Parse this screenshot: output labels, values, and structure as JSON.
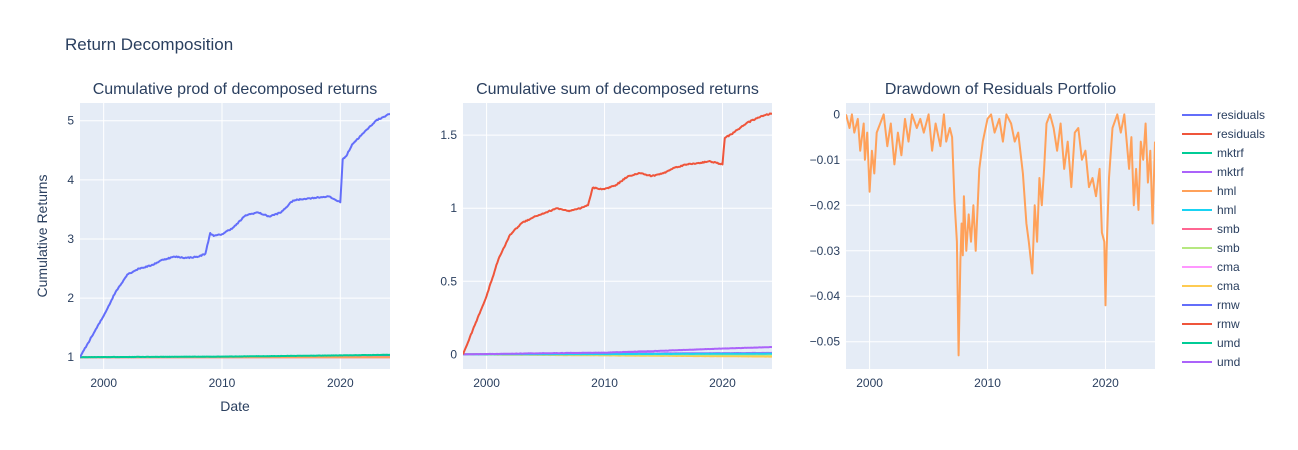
{
  "figure_title": "Return Decomposition",
  "colors": {
    "plot_bg": "#E5ECF6",
    "grid": "#FFFFFF",
    "text": "#2a3f5f"
  },
  "legend": [
    {
      "label": "residuals",
      "color": "#636EFA"
    },
    {
      "label": "residuals",
      "color": "#EF553B"
    },
    {
      "label": "mktrf",
      "color": "#00CC96"
    },
    {
      "label": "mktrf",
      "color": "#AB63FA"
    },
    {
      "label": "hml",
      "color": "#FFA15A"
    },
    {
      "label": "hml",
      "color": "#19D3F3"
    },
    {
      "label": "smb",
      "color": "#FF6692"
    },
    {
      "label": "smb",
      "color": "#B6E880"
    },
    {
      "label": "cma",
      "color": "#FF97FF"
    },
    {
      "label": "cma",
      "color": "#FECB52"
    },
    {
      "label": "rmw",
      "color": "#636EFA"
    },
    {
      "label": "rmw",
      "color": "#EF553B"
    },
    {
      "label": "umd",
      "color": "#00CC96"
    },
    {
      "label": "umd",
      "color": "#AB63FA"
    }
  ],
  "chart_data": [
    {
      "type": "line",
      "title": "Cumulative prod of decomposed returns",
      "xlabel": "Date",
      "ylabel": "Cumulative Returns",
      "xlim": [
        1998,
        2024.2
      ],
      "ylim": [
        0.8,
        5.3
      ],
      "xticks": [
        2000,
        2010,
        2020
      ],
      "xtick_labels": [
        "2000",
        "2010",
        "2020"
      ],
      "yticks": [
        1,
        2,
        3,
        4,
        5
      ],
      "ytick_labels": [
        "1",
        "2",
        "3",
        "4",
        "5"
      ],
      "grid": true,
      "series": [
        {
          "name": "residuals",
          "color": "#636EFA",
          "noise": 0.02,
          "x": [
            1998,
            1999,
            2000,
            2001,
            2002,
            2003,
            2004,
            2005,
            2006,
            2007,
            2008,
            2008.6,
            2009,
            2009.3,
            2010,
            2011,
            2012,
            2013,
            2014,
            2015,
            2016,
            2017,
            2018,
            2019,
            2020.0,
            2020.2,
            2020.5,
            2021,
            2022,
            2023,
            2024.2
          ],
          "y": [
            1.0,
            1.35,
            1.7,
            2.1,
            2.4,
            2.5,
            2.55,
            2.65,
            2.7,
            2.68,
            2.7,
            2.75,
            3.1,
            3.05,
            3.08,
            3.2,
            3.4,
            3.45,
            3.38,
            3.45,
            3.65,
            3.68,
            3.7,
            3.72,
            3.62,
            4.35,
            4.4,
            4.6,
            4.8,
            5.0,
            5.12
          ]
        },
        {
          "name": "mktrf",
          "color": "#00CC96",
          "noise": 0.004,
          "x": [
            1998,
            2010,
            2020,
            2024.2
          ],
          "y": [
            1.0,
            1.01,
            1.03,
            1.04
          ]
        },
        {
          "name": "hml",
          "color": "#FFA15A",
          "noise": 0.0,
          "x": [
            1998,
            2024.2
          ],
          "y": [
            1.0,
            1.0
          ]
        },
        {
          "name": "smb",
          "color": "#FF6692",
          "noise": 0.0,
          "x": [
            1998,
            2024.2
          ],
          "y": [
            1.0,
            1.0
          ]
        },
        {
          "name": "cma",
          "color": "#FF97FF",
          "noise": 0.0,
          "x": [
            1998,
            2024.2
          ],
          "y": [
            1.0,
            1.0
          ]
        },
        {
          "name": "rmw",
          "color": "#636EFA",
          "noise": 0.0,
          "x": [
            1998,
            2024.2
          ],
          "y": [
            1.0,
            1.01
          ]
        },
        {
          "name": "umd",
          "color": "#00CC96",
          "noise": 0.004,
          "x": [
            1998,
            2010,
            2020,
            2024.2
          ],
          "y": [
            1.0,
            1.005,
            1.02,
            1.02
          ]
        }
      ]
    },
    {
      "type": "line",
      "title": "Cumulative sum of decomposed returns",
      "xlabel": "",
      "ylabel": "",
      "xlim": [
        1998,
        2024.2
      ],
      "ylim": [
        -0.1,
        1.72
      ],
      "xticks": [
        2000,
        2010,
        2020
      ],
      "xtick_labels": [
        "2000",
        "2010",
        "2020"
      ],
      "yticks": [
        0,
        0.5,
        1,
        1.5
      ],
      "ytick_labels": [
        "0",
        "0.5",
        "1",
        "1.5"
      ],
      "grid": true,
      "series": [
        {
          "name": "residuals",
          "color": "#EF553B",
          "noise": 0.008,
          "x": [
            1998,
            1999,
            2000,
            2001,
            2002,
            2003,
            2004,
            2005,
            2006,
            2007,
            2008,
            2008.6,
            2009,
            2010,
            2011,
            2012,
            2013,
            2014,
            2015,
            2016,
            2017,
            2018,
            2019,
            2020.0,
            2020.2,
            2021,
            2022,
            2023,
            2024.2
          ],
          "y": [
            0.0,
            0.2,
            0.4,
            0.65,
            0.82,
            0.9,
            0.94,
            0.97,
            1.0,
            0.98,
            1.0,
            1.02,
            1.14,
            1.13,
            1.16,
            1.22,
            1.24,
            1.22,
            1.24,
            1.28,
            1.3,
            1.31,
            1.32,
            1.3,
            1.48,
            1.52,
            1.58,
            1.62,
            1.65
          ]
        },
        {
          "name": "mktrf",
          "color": "#AB63FA",
          "noise": 0.002,
          "x": [
            1998,
            2005,
            2010,
            2015,
            2020,
            2024.2
          ],
          "y": [
            0.0,
            0.008,
            0.012,
            0.025,
            0.04,
            0.05
          ]
        },
        {
          "name": "hml",
          "color": "#19D3F3",
          "noise": 0.001,
          "x": [
            1998,
            2024.2
          ],
          "y": [
            0.0,
            0.005
          ]
        },
        {
          "name": "smb",
          "color": "#B6E880",
          "noise": 0.0,
          "x": [
            1998,
            2024.2
          ],
          "y": [
            0.0,
            -0.003
          ]
        },
        {
          "name": "cma",
          "color": "#FECB52",
          "noise": 0.001,
          "x": [
            1998,
            2024.2
          ],
          "y": [
            0.0,
            -0.015
          ]
        },
        {
          "name": "rmw",
          "color": "#EF553B",
          "noise": 0.001,
          "x": [
            1998,
            2024.2
          ],
          "y": [
            0.0,
            0.0
          ]
        },
        {
          "name": "umd",
          "color": "#AB63FA",
          "noise": 0.001,
          "x": [
            1998,
            2010,
            2024.2
          ],
          "y": [
            0.0,
            0.005,
            0.01
          ]
        }
      ]
    },
    {
      "type": "line",
      "title": "Drawdown of Residuals Portfolio",
      "xlabel": "",
      "ylabel": "",
      "xlim": [
        1998,
        2024.2
      ],
      "ylim": [
        -0.056,
        0.0025
      ],
      "xticks": [
        2000,
        2010,
        2020
      ],
      "xtick_labels": [
        "2000",
        "2010",
        "2020"
      ],
      "yticks": [
        0,
        -0.01,
        -0.02,
        -0.03,
        -0.04,
        -0.05
      ],
      "ytick_labels": [
        "0",
        "−0.01",
        "−0.02",
        "−0.03",
        "−0.04",
        "−0.05"
      ],
      "grid": true,
      "series": [
        {
          "name": "residuals",
          "color": "#FFA15A",
          "noise": 0.0,
          "x": [
            1998.0,
            1998.3,
            1998.5,
            1998.7,
            1999.0,
            1999.2,
            1999.5,
            1999.6,
            1999.8,
            2000.0,
            2000.2,
            2000.4,
            2000.6,
            2000.9,
            2001.2,
            2001.5,
            2001.8,
            2002.1,
            2002.4,
            2002.7,
            2003.0,
            2003.3,
            2003.6,
            2004.0,
            2004.3,
            2004.6,
            2005.0,
            2005.3,
            2005.6,
            2006.0,
            2006.3,
            2006.5,
            2006.8,
            2007.0,
            2007.2,
            2007.4,
            2007.55,
            2007.7,
            2007.8,
            2007.9,
            2008.0,
            2008.2,
            2008.4,
            2008.6,
            2008.8,
            2009.0,
            2009.3,
            2009.6,
            2010.0,
            2010.3,
            2010.6,
            2011.0,
            2011.3,
            2011.6,
            2012.0,
            2012.3,
            2012.6,
            2013.0,
            2013.3,
            2013.5,
            2013.8,
            2014.0,
            2014.2,
            2014.4,
            2014.6,
            2014.8,
            2015.0,
            2015.3,
            2015.6,
            2015.9,
            2016.2,
            2016.5,
            2016.8,
            2017.1,
            2017.4,
            2017.7,
            2018.0,
            2018.3,
            2018.6,
            2018.9,
            2019.2,
            2019.5,
            2019.7,
            2019.9,
            2020.0,
            2020.1,
            2020.3,
            2020.6,
            2021.0,
            2021.3,
            2021.6,
            2022.0,
            2022.2,
            2022.4,
            2022.6,
            2022.8,
            2023.0,
            2023.2,
            2023.4,
            2023.6,
            2023.8,
            2024.0,
            2024.2
          ],
          "y": [
            0,
            -0.003,
            0,
            -0.004,
            -0.001,
            -0.008,
            -0.002,
            -0.01,
            -0.004,
            -0.017,
            -0.008,
            -0.013,
            -0.004,
            -0.002,
            0,
            -0.007,
            -0.002,
            -0.011,
            -0.004,
            -0.009,
            -0.001,
            -0.006,
            0,
            -0.003,
            -0.001,
            -0.004,
            0,
            -0.008,
            -0.002,
            -0.007,
            0,
            -0.006,
            -0.003,
            -0.005,
            -0.019,
            -0.028,
            -0.053,
            -0.032,
            -0.024,
            -0.031,
            -0.018,
            -0.03,
            -0.022,
            -0.028,
            -0.02,
            -0.03,
            -0.012,
            -0.006,
            -0.001,
            0,
            -0.004,
            -0.001,
            -0.006,
            0,
            -0.002,
            -0.006,
            -0.004,
            -0.013,
            -0.024,
            -0.028,
            -0.035,
            -0.02,
            -0.028,
            -0.014,
            -0.02,
            -0.012,
            -0.002,
            0,
            -0.003,
            -0.008,
            -0.002,
            -0.012,
            -0.006,
            -0.016,
            -0.004,
            -0.003,
            -0.01,
            -0.008,
            -0.016,
            -0.014,
            -0.018,
            -0.012,
            -0.026,
            -0.028,
            -0.042,
            -0.03,
            -0.014,
            -0.003,
            0,
            -0.004,
            0,
            -0.012,
            -0.005,
            -0.02,
            -0.012,
            -0.021,
            -0.006,
            -0.01,
            -0.002,
            -0.015,
            -0.008,
            -0.024,
            -0.006
          ]
        }
      ]
    }
  ]
}
